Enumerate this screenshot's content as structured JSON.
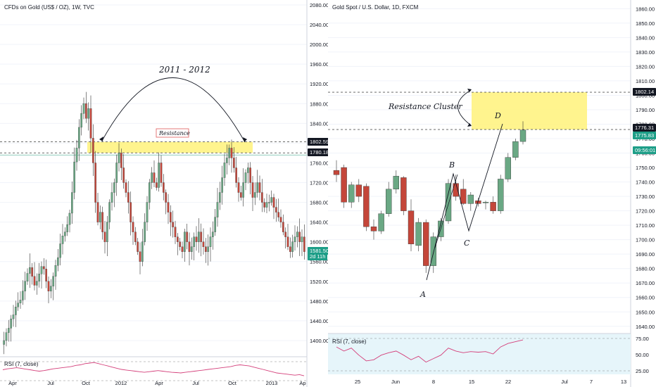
{
  "left": {
    "title": "CFDs on Gold (US$ / OZ), 1W, TVC",
    "rsi_label": "RSI (7, close)",
    "annotation_years": "2011 - 2012",
    "annotation_resistance": "Resistance",
    "price_tags": [
      {
        "label": "1802.59",
        "color": "#131722",
        "price": 1802.59
      },
      {
        "label": "1780.18",
        "color": "#131722",
        "price": 1780.18
      },
      {
        "label": "1581.50",
        "color": "#1e9e88",
        "price": 1581.5
      },
      {
        "label": "2d 11h",
        "color": "#1e9e88",
        "price": 1569
      }
    ],
    "colors": {
      "up": "#6aa884",
      "down": "#c4463a",
      "zone": "#fff27a",
      "rsi": "#d43f7a"
    }
  },
  "right": {
    "title": "Gold Spot / U.S. Dollar, 1D, FXCM",
    "rsi_label": "RSI (7, close)",
    "annotation_cluster": "Resistance Cluster",
    "points": {
      "A": "A",
      "B": "B",
      "C": "C",
      "D": "D"
    },
    "price_tags": [
      {
        "label": "1802.14",
        "color": "#131722",
        "price": 1802.14
      },
      {
        "label": "1776.31",
        "color": "#131722",
        "price": 1776.31
      },
      {
        "label": "1775.83",
        "color": "#1e9e88",
        "price": 1775.83
      },
      {
        "label": "09:56:01",
        "color": "#1e9e88",
        "price": 1765.5
      }
    ]
  },
  "chart_data": [
    {
      "type": "candlestick",
      "title": "CFDs on Gold (US$ / OZ), 1W, TVC",
      "ylim": [
        1370,
        2090
      ],
      "y_ticks": [
        1400,
        1440,
        1480,
        1520,
        1560,
        1600,
        1640,
        1680,
        1720,
        1760,
        1800,
        1840,
        1880,
        1920,
        1960,
        2000,
        2040,
        2080
      ],
      "x_ticks": [
        "Apr",
        "Jul",
        "Oct",
        "2012",
        "Apr",
        "Jul",
        "Oct",
        "2013",
        "Ap"
      ],
      "resistance_zone": [
        1780.18,
        1802.59
      ],
      "close_series": [
        1400,
        1416,
        1425,
        1444,
        1452,
        1468,
        1476,
        1482,
        1500,
        1520,
        1536,
        1548,
        1530,
        1512,
        1520,
        1535,
        1550,
        1545,
        1520,
        1500,
        1510,
        1530,
        1552,
        1568,
        1596,
        1612,
        1620,
        1635,
        1658,
        1700,
        1762,
        1790,
        1832,
        1860,
        1880,
        1850,
        1870,
        1810,
        1760,
        1680,
        1640,
        1660,
        1620,
        1600,
        1640,
        1680,
        1700,
        1720,
        1760,
        1780,
        1750,
        1720,
        1700,
        1680,
        1640,
        1620,
        1600,
        1580,
        1560,
        1600,
        1640,
        1680,
        1720,
        1740,
        1720,
        1710,
        1760,
        1720,
        1700,
        1680,
        1660,
        1640,
        1630,
        1610,
        1600,
        1590,
        1580,
        1620,
        1600,
        1580,
        1590,
        1610,
        1600,
        1620,
        1600,
        1590,
        1580,
        1590,
        1610,
        1620,
        1650,
        1680,
        1700,
        1730,
        1760,
        1770,
        1790,
        1770,
        1750,
        1720,
        1700,
        1690,
        1720,
        1740,
        1750,
        1720,
        1690,
        1700,
        1720,
        1700,
        1680,
        1670,
        1680,
        1680,
        1690,
        1670,
        1660,
        1650,
        1640,
        1620,
        1610,
        1590,
        1580,
        1600,
        1610,
        1620,
        1600,
        1610,
        1580
      ],
      "rsi_ylim": [
        0,
        100
      ],
      "rsi": [
        55,
        58,
        60,
        62,
        60,
        57,
        55,
        52,
        50,
        52,
        55,
        58,
        60,
        62,
        64,
        66,
        70,
        72,
        76,
        78,
        80,
        76,
        72,
        68,
        64,
        60,
        56,
        54,
        52,
        50,
        48,
        46,
        48,
        50,
        52,
        50,
        48,
        46,
        45,
        44,
        46,
        48,
        50,
        52,
        54,
        56,
        58,
        60,
        62,
        64,
        66,
        70,
        72,
        70,
        68,
        64,
        60,
        56,
        52,
        48,
        44,
        42,
        40,
        38,
        36,
        38,
        34
      ]
    },
    {
      "type": "candlestick",
      "title": "Gold Spot / U.S. Dollar, 1D, FXCM",
      "ylim": [
        1636,
        1866
      ],
      "y_ticks": [
        1640,
        1650,
        1660,
        1670,
        1680,
        1690,
        1700,
        1710,
        1720,
        1730,
        1740,
        1750,
        1760,
        1770,
        1780,
        1790,
        1800,
        1810,
        1820,
        1830,
        1840,
        1850,
        1860
      ],
      "x_ticks": [
        "25",
        "Jun",
        "8",
        "15",
        "22",
        "Jul",
        "7",
        "13"
      ],
      "resistance_zone": [
        1776.31,
        1802.14
      ],
      "candles": [
        {
          "o": 1748,
          "h": 1755,
          "l": 1740,
          "c": 1745
        },
        {
          "o": 1750,
          "h": 1752,
          "l": 1722,
          "c": 1726
        },
        {
          "o": 1726,
          "h": 1740,
          "l": 1722,
          "c": 1738
        },
        {
          "o": 1738,
          "h": 1742,
          "l": 1726,
          "c": 1730
        },
        {
          "o": 1737,
          "h": 1739,
          "l": 1706,
          "c": 1709
        },
        {
          "o": 1709,
          "h": 1714,
          "l": 1700,
          "c": 1706
        },
        {
          "o": 1706,
          "h": 1720,
          "l": 1704,
          "c": 1718
        },
        {
          "o": 1718,
          "h": 1740,
          "l": 1716,
          "c": 1735
        },
        {
          "o": 1735,
          "h": 1748,
          "l": 1732,
          "c": 1744
        },
        {
          "o": 1743,
          "h": 1744,
          "l": 1717,
          "c": 1720
        },
        {
          "o": 1720,
          "h": 1728,
          "l": 1692,
          "c": 1697
        },
        {
          "o": 1696,
          "h": 1715,
          "l": 1692,
          "c": 1712
        },
        {
          "o": 1712,
          "h": 1714,
          "l": 1677,
          "c": 1682
        },
        {
          "o": 1682,
          "h": 1705,
          "l": 1677,
          "c": 1702
        },
        {
          "o": 1702,
          "h": 1715,
          "l": 1699,
          "c": 1713
        },
        {
          "o": 1713,
          "h": 1742,
          "l": 1711,
          "c": 1739
        },
        {
          "o": 1739,
          "h": 1745,
          "l": 1727,
          "c": 1730
        },
        {
          "o": 1735,
          "h": 1742,
          "l": 1724,
          "c": 1725
        },
        {
          "o": 1725,
          "h": 1733,
          "l": 1720,
          "c": 1731
        },
        {
          "o": 1727,
          "h": 1729,
          "l": 1723,
          "c": 1725
        },
        {
          "o": 1726,
          "h": 1727,
          "l": 1721,
          "c": 1726
        },
        {
          "o": 1726,
          "h": 1730,
          "l": 1718,
          "c": 1720
        },
        {
          "o": 1720,
          "h": 1745,
          "l": 1718,
          "c": 1742
        },
        {
          "o": 1742,
          "h": 1760,
          "l": 1740,
          "c": 1757
        },
        {
          "o": 1757,
          "h": 1770,
          "l": 1755,
          "c": 1768
        },
        {
          "o": 1768,
          "h": 1782,
          "l": 1766,
          "c": 1776
        }
      ],
      "rsi_ylim": [
        15,
        85
      ],
      "rsi": [
        62,
        55,
        60,
        48,
        38,
        40,
        48,
        52,
        55,
        48,
        40,
        46,
        36,
        42,
        48,
        60,
        55,
        52,
        54,
        53,
        54,
        50,
        62,
        68,
        71,
        74
      ]
    }
  ]
}
